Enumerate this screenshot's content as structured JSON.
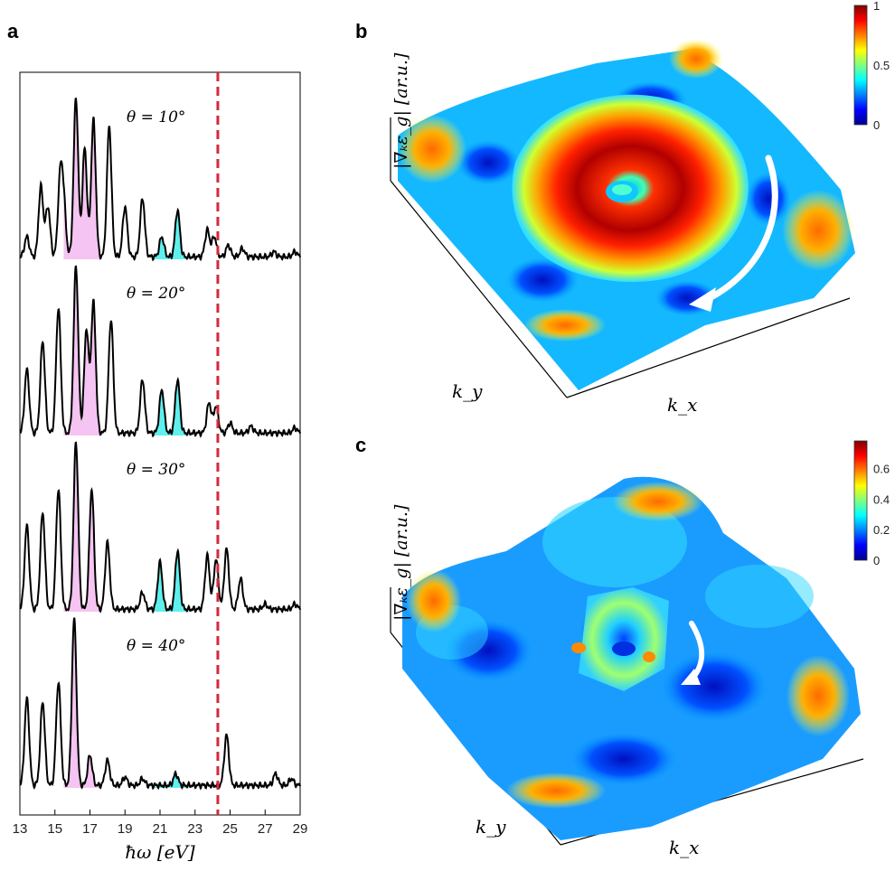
{
  "panel_labels": {
    "a": "a",
    "b": "b",
    "c": "c"
  },
  "chart_data": [
    {
      "panel": "a",
      "type": "line",
      "xlabel": "ħω [eV]",
      "xlim": [
        13,
        29
      ],
      "xticks": [
        13,
        15,
        17,
        19,
        21,
        23,
        25,
        27,
        29
      ],
      "vline": {
        "x": 24.3,
        "color": "#d62839",
        "style": "dashed"
      },
      "shade_pink": {
        "range": [
          15.5,
          17.6
        ],
        "color": "#f5c4f2"
      },
      "shade_cyan": {
        "range": [
          20.7,
          22.5
        ],
        "color": "#5ff0ee"
      },
      "series": [
        {
          "label": "θ = 10°",
          "peaks": [
            [
              13.4,
              0.12
            ],
            [
              14.2,
              0.42
            ],
            [
              14.6,
              0.3
            ],
            [
              15.3,
              0.45
            ],
            [
              15.5,
              0.3
            ],
            [
              16.2,
              0.95
            ],
            [
              16.7,
              0.65
            ],
            [
              17.2,
              0.82
            ],
            [
              18.1,
              0.78
            ],
            [
              19.0,
              0.3
            ],
            [
              20.0,
              0.35
            ],
            [
              21.1,
              0.12
            ],
            [
              22.0,
              0.28
            ],
            [
              23.7,
              0.16
            ],
            [
              24.1,
              0.12
            ],
            [
              24.9,
              0.07
            ],
            [
              25.7,
              0.05
            ],
            [
              27.5,
              0.03
            ],
            [
              28.7,
              0.03
            ]
          ]
        },
        {
          "label": "θ = 20°",
          "peaks": [
            [
              13.4,
              0.38
            ],
            [
              14.3,
              0.55
            ],
            [
              15.2,
              0.75
            ],
            [
              16.2,
              1.0
            ],
            [
              16.8,
              0.62
            ],
            [
              17.2,
              0.78
            ],
            [
              18.2,
              0.68
            ],
            [
              20.0,
              0.32
            ],
            [
              21.1,
              0.26
            ],
            [
              22.0,
              0.32
            ],
            [
              23.8,
              0.18
            ],
            [
              24.2,
              0.16
            ],
            [
              25.0,
              0.06
            ],
            [
              26.2,
              0.04
            ],
            [
              28.7,
              0.03
            ]
          ]
        },
        {
          "label": "θ = 30°",
          "peaks": [
            [
              13.4,
              0.5
            ],
            [
              14.3,
              0.58
            ],
            [
              15.2,
              0.72
            ],
            [
              16.2,
              1.0
            ],
            [
              17.1,
              0.72
            ],
            [
              18.0,
              0.4
            ],
            [
              20.0,
              0.1
            ],
            [
              21.0,
              0.28
            ],
            [
              22.0,
              0.35
            ],
            [
              23.7,
              0.32
            ],
            [
              24.2,
              0.3
            ],
            [
              24.8,
              0.36
            ],
            [
              25.6,
              0.18
            ],
            [
              27.0,
              0.03
            ],
            [
              28.7,
              0.03
            ]
          ]
        },
        {
          "label": "θ = 40°",
          "peaks": [
            [
              13.4,
              0.52
            ],
            [
              14.3,
              0.5
            ],
            [
              15.2,
              0.62
            ],
            [
              16.1,
              1.0
            ],
            [
              17.0,
              0.18
            ],
            [
              18.0,
              0.15
            ],
            [
              19.0,
              0.05
            ],
            [
              20.0,
              0.04
            ],
            [
              21.9,
              0.07
            ],
            [
              24.8,
              0.3
            ],
            [
              27.6,
              0.07
            ],
            [
              28.5,
              0.04
            ]
          ]
        }
      ]
    },
    {
      "panel": "b",
      "type": "surface",
      "zlabel": "|∇ₖε_g| [ar.u.]",
      "xlabel": "k_x",
      "ylabel": "k_y",
      "colorbar": {
        "range": [
          0,
          1
        ],
        "ticks": [
          "0",
          "0.5",
          "1"
        ]
      }
    },
    {
      "panel": "c",
      "type": "surface",
      "zlabel": "|∇ₖε_g| [ar.u.]",
      "xlabel": "k_x",
      "ylabel": "k_y",
      "colorbar": {
        "range": [
          0,
          0.78
        ],
        "ticks": [
          "0",
          "0.2",
          "0.4",
          "0.6"
        ]
      }
    }
  ]
}
